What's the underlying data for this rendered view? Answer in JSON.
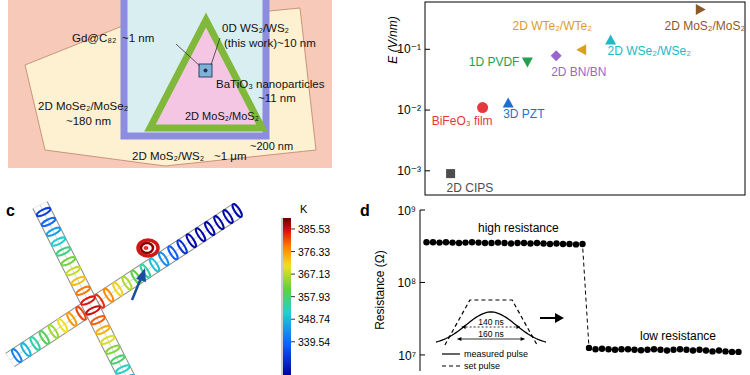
{
  "panel_labels": [
    "c",
    "d"
  ],
  "diagram": {
    "items": [
      {
        "name": "2D MoS₂/WS₂",
        "size": "~1 μm"
      },
      {
        "name": "2D MoSe₂/MoSe₂",
        "size": "~180 nm"
      },
      {
        "name": "2D MoS₂/MoS₂",
        "size": "~200 nm"
      },
      {
        "name": "BaTiO₃ nanoparticles",
        "size": "~11 nm"
      },
      {
        "name": "0D WS₂/WS₂",
        "note": "(this work)",
        "size": "~10 nm"
      },
      {
        "name": "Gd@C₈₂",
        "size": "~1 nm"
      }
    ]
  },
  "simulation": {
    "colorbar": {
      "title": "K",
      "range": [
        326,
        390
      ],
      "ticks": [
        385.53,
        376.33,
        367.13,
        357.93,
        348.74,
        339.54
      ]
    }
  },
  "chart_data": [
    {
      "type": "scatter",
      "y_label": "E (V/nm)",
      "log": "y",
      "tick_labels": "y",
      "grid": false,
      "xlim": [
        0,
        10
      ],
      "ylim": [
        0.0004,
        0.6
      ],
      "yticks": [
        {
          "value": 0.001,
          "label": "10⁻³"
        },
        {
          "value": 0.01,
          "label": "10⁻²"
        },
        {
          "value": 0.1,
          "label": "10⁻¹"
        }
      ],
      "series": [
        {
          "name": "2D CIPS",
          "color": "#4d4d4d",
          "marker": "square",
          "x": [
            0.8
          ],
          "values": [
            0.0009
          ]
        },
        {
          "name": "BiFeO₃ film",
          "color": "#e5383d",
          "marker": "circle",
          "x": [
            1.8
          ],
          "values": [
            0.011
          ]
        },
        {
          "name": "3D PZT",
          "color": "#1f6fd0",
          "marker": "triangle-up",
          "x": [
            2.6
          ],
          "values": [
            0.013
          ]
        },
        {
          "name": "1D PVDF",
          "color": "#22a050",
          "marker": "triangle-down",
          "x": [
            3.2
          ],
          "values": [
            0.062
          ]
        },
        {
          "name": "2D BN/BN",
          "color": "#9966cc",
          "marker": "diamond",
          "x": [
            4.1
          ],
          "values": [
            0.078
          ]
        },
        {
          "name": "2D WTe₂/WTe₂",
          "color": "#d9a020",
          "marker": "triangle-left",
          "x": [
            4.9
          ],
          "values": [
            0.098
          ]
        },
        {
          "name": "2D WSe₂/WSe₂",
          "color": "#20b8c8",
          "marker": "triangle-up",
          "x": [
            5.8
          ],
          "values": [
            0.142
          ]
        },
        {
          "name": "2D MoS₂/MoS₂",
          "color": "#8b5a2b",
          "marker": "triangle-right",
          "x": [
            8.6
          ],
          "values": [
            0.45
          ]
        }
      ]
    },
    {
      "type": "line",
      "y_label": "Resistance (Ω)",
      "log": "y",
      "tick_labels": "y",
      "grid": false,
      "color": "#000000",
      "marker": "circle",
      "line_style": "dashed",
      "xlim": [
        0,
        50
      ],
      "ylim": [
        6000000,
        1000000000
      ],
      "yticks": [
        {
          "value": 10000000,
          "label": "10⁷"
        },
        {
          "value": 100000000,
          "label": "10⁸"
        },
        {
          "value": 1000000000,
          "label": "10⁹"
        }
      ],
      "x": [
        1,
        2,
        3,
        4,
        5,
        6,
        7,
        8,
        9,
        10,
        11,
        12,
        13,
        14,
        15,
        16,
        17,
        18,
        19,
        20,
        21,
        22,
        23,
        24,
        25,
        26,
        27,
        28,
        29,
        30,
        31,
        32,
        33,
        34,
        35,
        36,
        37,
        38,
        39,
        40,
        41,
        42,
        43,
        44,
        45,
        46,
        47,
        48,
        49
      ],
      "values": [
        360000000,
        360000000,
        355000000,
        360000000,
        355000000,
        350000000,
        355000000,
        360000000,
        355000000,
        350000000,
        350000000,
        355000000,
        350000000,
        345000000,
        350000000,
        350000000,
        345000000,
        350000000,
        345000000,
        340000000,
        345000000,
        340000000,
        340000000,
        335000000,
        340000000,
        12500000,
        12000000,
        12200000,
        12000000,
        11800000,
        12000000,
        12000000,
        11800000,
        11600000,
        11800000,
        12000000,
        11800000,
        11500000,
        11800000,
        12000000,
        11800000,
        11500000,
        11800000,
        11500000,
        11200000,
        11500000,
        11200000,
        11000000,
        11000000
      ],
      "annotations": [
        "high resistance",
        "low resistance"
      ],
      "inset": {
        "pulse_widths": [
          {
            "value": 140,
            "label": "140 ns"
          },
          {
            "value": 160,
            "label": "160 ns"
          }
        ],
        "legend": [
          {
            "name": "measured pulse",
            "line_style": "solid"
          },
          {
            "name": "set pulse",
            "line_style": "dashed"
          }
        ]
      }
    }
  ]
}
